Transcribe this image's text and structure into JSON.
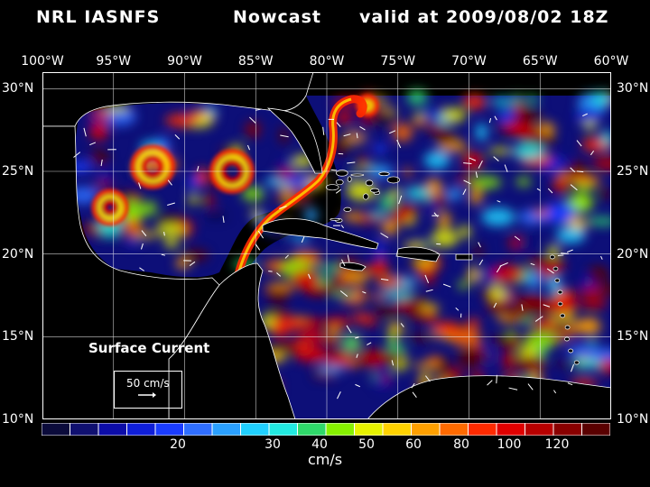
{
  "header": {
    "model": "NRL IASNFS",
    "product": "Nowcast",
    "valid": "valid at 2009/08/02 18Z"
  },
  "lon_labels": [
    "100°W",
    "95°W",
    "90°W",
    "85°W",
    "80°W",
    "75°W",
    "70°W",
    "65°W",
    "60°W"
  ],
  "lat_labels": [
    "30°N",
    "25°N",
    "20°N",
    "15°N",
    "10°N"
  ],
  "legend": {
    "title": "Surface Current",
    "reference_speed": "50 cm/s"
  },
  "colorbar": {
    "units": "cm/s",
    "tick_labels": [
      "20",
      "30",
      "40",
      "50",
      "60",
      "80",
      "100",
      "120"
    ],
    "colors": [
      "#0b0b3b",
      "#101070",
      "#0c0ca8",
      "#0f1ed8",
      "#1a3cff",
      "#2f6eff",
      "#2aa0ff",
      "#20d0ff",
      "#22e9e0",
      "#2fd86a",
      "#86f000",
      "#e6f200",
      "#ffd200",
      "#ffa000",
      "#ff6a00",
      "#ff2a00",
      "#e00000",
      "#b80000",
      "#8a0000",
      "#5a0000"
    ]
  },
  "map": {
    "lon_range": [
      -100,
      -60
    ],
    "lat_range": [
      10,
      31
    ],
    "background_color": "#000000",
    "coast_color": "#ffffff",
    "grid_color": "#ffffff"
  }
}
